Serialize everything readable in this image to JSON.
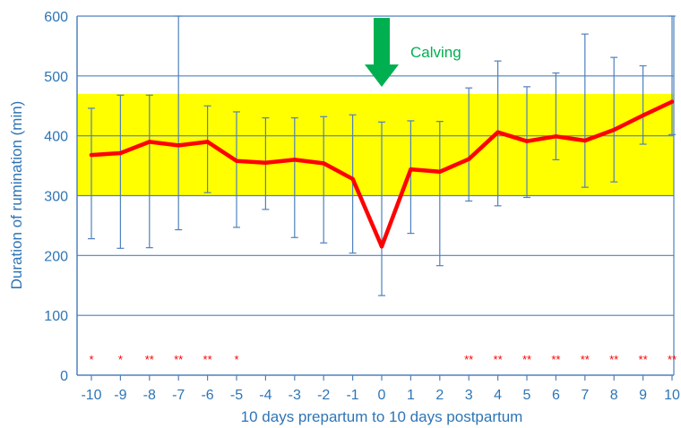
{
  "chart_data": {
    "type": "line",
    "title": "",
    "xlabel": "10 days prepartum to 10 days postpartum",
    "ylabel": "Duration of rumination (min)",
    "ylim": [
      0,
      600
    ],
    "yticks": [
      0,
      100,
      200,
      300,
      400,
      500,
      600
    ],
    "grid": true,
    "x": [
      -10,
      -9,
      -8,
      -7,
      -6,
      -5,
      -4,
      -3,
      -2,
      -1,
      0,
      1,
      2,
      3,
      4,
      5,
      6,
      7,
      8,
      9,
      10
    ],
    "series": [
      {
        "values": [
          368,
          371,
          390,
          384,
          390,
          358,
          355,
          360,
          354,
          328,
          215,
          344,
          340,
          361,
          406,
          391,
          399,
          392,
          410,
          434,
          457
        ],
        "error_low": [
          228,
          212,
          213,
          243,
          305,
          247,
          277,
          230,
          221,
          204,
          133,
          237,
          183,
          291,
          283,
          297,
          360,
          314,
          323,
          386,
          402
        ],
        "error_high": [
          446,
          468,
          468,
          600,
          450,
          440,
          430,
          430,
          432,
          435,
          423,
          425,
          424,
          480,
          525,
          482,
          505,
          570,
          531,
          517,
          600
        ],
        "color": "#ff0000"
      }
    ],
    "reference_band": {
      "low": 300,
      "high": 470,
      "color": "#ffff00"
    },
    "annotations": [
      {
        "text": "Calving",
        "x": 0,
        "color": "#00b050",
        "marker": "down-arrow"
      }
    ],
    "significance": [
      {
        "x": -10,
        "text": "*"
      },
      {
        "x": -9,
        "text": "*"
      },
      {
        "x": -8,
        "text": "**"
      },
      {
        "x": -7,
        "text": "**"
      },
      {
        "x": -6,
        "text": "**"
      },
      {
        "x": -5,
        "text": "*"
      },
      {
        "x": 3,
        "text": "**"
      },
      {
        "x": 4,
        "text": "**"
      },
      {
        "x": 5,
        "text": "**"
      },
      {
        "x": 6,
        "text": "**"
      },
      {
        "x": 7,
        "text": "**"
      },
      {
        "x": 8,
        "text": "**"
      },
      {
        "x": 9,
        "text": "**"
      },
      {
        "x": 10,
        "text": "**"
      }
    ],
    "colors": {
      "axis_text": "#2e75b6",
      "grid": "#4f81bd",
      "error_bar": "#4f81bd",
      "line": "#ff0000",
      "band": "#ffff00",
      "significance": "#ff0000",
      "arrow": "#00b050"
    }
  }
}
